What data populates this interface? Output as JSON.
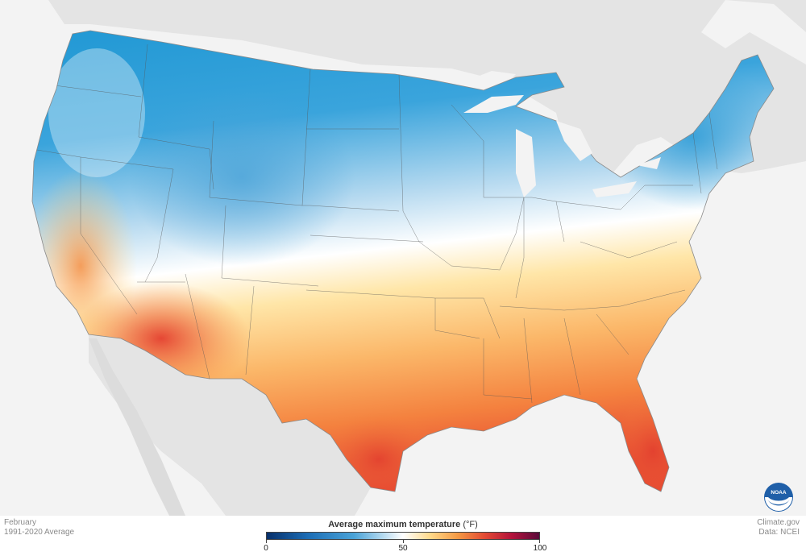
{
  "map": {
    "title": "Average maximum temperature",
    "unit": "(°F)",
    "period_month": "February",
    "period_range": "1991-2020 Average",
    "credit_site": "Climate.gov",
    "credit_data": "Data: NCEI",
    "logo_text": "NOAA",
    "legend": {
      "min": 0,
      "max": 100,
      "ticks": [
        {
          "value": 0,
          "label": "0"
        },
        {
          "value": 50,
          "label": "50"
        },
        {
          "value": 100,
          "label": "100"
        }
      ],
      "colors": [
        "#08306b",
        "#1c6db5",
        "#4aa3d8",
        "#ffffff",
        "#ffd98a",
        "#f59a45",
        "#e34a33",
        "#b3123b",
        "#5a0a3a"
      ]
    },
    "land_color": "#e4e4e4",
    "water_color": "#f3f3f3",
    "region_colors": {
      "north": "#1a95d2",
      "northwest": "#5cb4e2",
      "mid": "#eaf3fb",
      "transition": "#ffe6a8",
      "south": "#fbb769",
      "gulf": "#f1733c",
      "hot": "#e43f2f"
    }
  }
}
